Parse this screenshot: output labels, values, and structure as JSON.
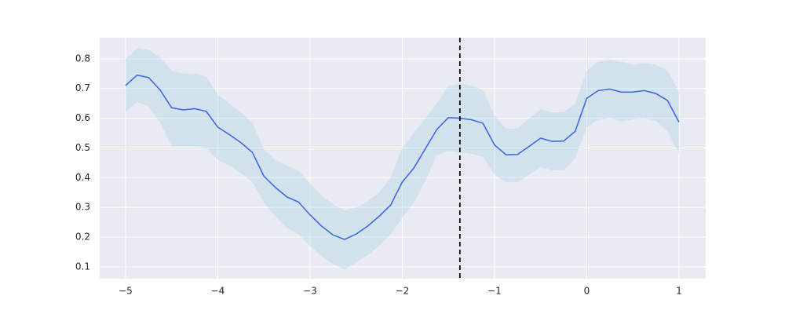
{
  "chart_data": {
    "type": "line",
    "x": [
      -5,
      -4.875,
      -4.75,
      -4.625,
      -4.5,
      -4.375,
      -4.25,
      -4.125,
      -4,
      -3.875,
      -3.75,
      -3.625,
      -3.5,
      -3.375,
      -3.25,
      -3.125,
      -3,
      -2.875,
      -2.75,
      -2.625,
      -2.5,
      -2.375,
      -2.25,
      -2.125,
      -2,
      -1.875,
      -1.75,
      -1.625,
      -1.5,
      -1.375,
      -1.25,
      -1.125,
      -1,
      -0.875,
      -0.75,
      -0.625,
      -0.5,
      -0.375,
      -0.25,
      -0.125,
      0,
      0.125,
      0.25,
      0.375,
      0.5,
      0.625,
      0.75,
      0.875,
      1
    ],
    "values": [
      0.71,
      0.745,
      0.737,
      0.695,
      0.635,
      0.628,
      0.632,
      0.623,
      0.57,
      0.545,
      0.518,
      0.485,
      0.405,
      0.367,
      0.335,
      0.318,
      0.275,
      0.237,
      0.207,
      0.192,
      0.21,
      0.237,
      0.27,
      0.308,
      0.385,
      0.432,
      0.497,
      0.562,
      0.602,
      0.6,
      0.595,
      0.583,
      0.51,
      0.477,
      0.478,
      0.505,
      0.533,
      0.522,
      0.523,
      0.556,
      0.667,
      0.693,
      0.698,
      0.688,
      0.688,
      0.693,
      0.683,
      0.66,
      0.587
    ],
    "ci_upper": [
      0.8,
      0.835,
      0.83,
      0.805,
      0.76,
      0.75,
      0.75,
      0.74,
      0.68,
      0.65,
      0.62,
      0.585,
      0.495,
      0.46,
      0.44,
      0.425,
      0.38,
      0.34,
      0.31,
      0.29,
      0.3,
      0.32,
      0.35,
      0.4,
      0.5,
      0.55,
      0.6,
      0.65,
      0.71,
      0.715,
      0.71,
      0.695,
      0.61,
      0.565,
      0.565,
      0.6,
      0.63,
      0.62,
      0.62,
      0.65,
      0.76,
      0.79,
      0.795,
      0.79,
      0.78,
      0.785,
      0.78,
      0.76,
      0.69
    ],
    "ci_lower": [
      0.62,
      0.655,
      0.64,
      0.585,
      0.505,
      0.505,
      0.505,
      0.5,
      0.46,
      0.44,
      0.415,
      0.385,
      0.315,
      0.27,
      0.23,
      0.21,
      0.17,
      0.135,
      0.11,
      0.09,
      0.115,
      0.14,
      0.17,
      0.21,
      0.265,
      0.315,
      0.39,
      0.475,
      0.49,
      0.485,
      0.48,
      0.47,
      0.41,
      0.385,
      0.385,
      0.41,
      0.435,
      0.425,
      0.425,
      0.465,
      0.57,
      0.595,
      0.6,
      0.59,
      0.595,
      0.6,
      0.59,
      0.555,
      0.48
    ],
    "color": "#4169e1",
    "band_color": "#add8e6",
    "vline": -1.375,
    "vline_color": "#000000",
    "xlim": [
      -5.28,
      1.29
    ],
    "ylim": [
      0.06,
      0.871
    ],
    "xticks": [
      {
        "value": -5,
        "label": "−5"
      },
      {
        "value": -4,
        "label": "−4"
      },
      {
        "value": -3,
        "label": "−3"
      },
      {
        "value": -2,
        "label": "−2"
      },
      {
        "value": -1,
        "label": "−1"
      },
      0,
      1
    ],
    "yticks": [
      0.1,
      0.2,
      0.3,
      0.4,
      0.5,
      0.6,
      0.7,
      0.8
    ],
    "grid": true
  }
}
